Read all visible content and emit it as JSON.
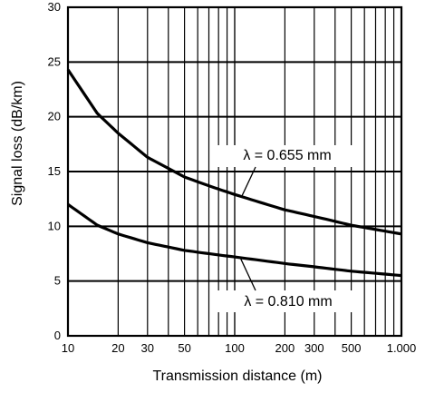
{
  "chart_data": {
    "type": "line",
    "title": "",
    "xlabel": "Transmission distance (m)",
    "ylabel": "Signal loss (dB/km)",
    "x_scale": "log",
    "xlim": [
      10,
      1000
    ],
    "ylim": [
      0,
      30
    ],
    "grid": true,
    "x_ticks": [
      10,
      20,
      30,
      50,
      100,
      200,
      300,
      500,
      1000
    ],
    "x_tick_labels": [
      "10",
      "20",
      "30",
      "50",
      "100",
      "200",
      "300",
      "500",
      "1.000"
    ],
    "y_ticks": [
      0,
      5,
      10,
      15,
      20,
      25,
      30
    ],
    "y_tick_labels": [
      "0",
      "5",
      "10",
      "15",
      "20",
      "25",
      "30"
    ],
    "series": [
      {
        "name": "λ = 0.655 mm",
        "x": [
          10,
          15,
          20,
          30,
          50,
          70,
          100,
          200,
          300,
          500,
          1000
        ],
        "y": [
          24.3,
          20.3,
          18.5,
          16.3,
          14.5,
          13.7,
          12.9,
          11.5,
          10.9,
          10.1,
          9.3
        ]
      },
      {
        "name": "λ = 0.810 mm",
        "x": [
          10,
          15,
          20,
          30,
          50,
          70,
          100,
          200,
          300,
          500,
          1000
        ],
        "y": [
          12.0,
          10.1,
          9.3,
          8.5,
          7.8,
          7.5,
          7.2,
          6.6,
          6.3,
          5.9,
          5.5
        ]
      }
    ]
  }
}
